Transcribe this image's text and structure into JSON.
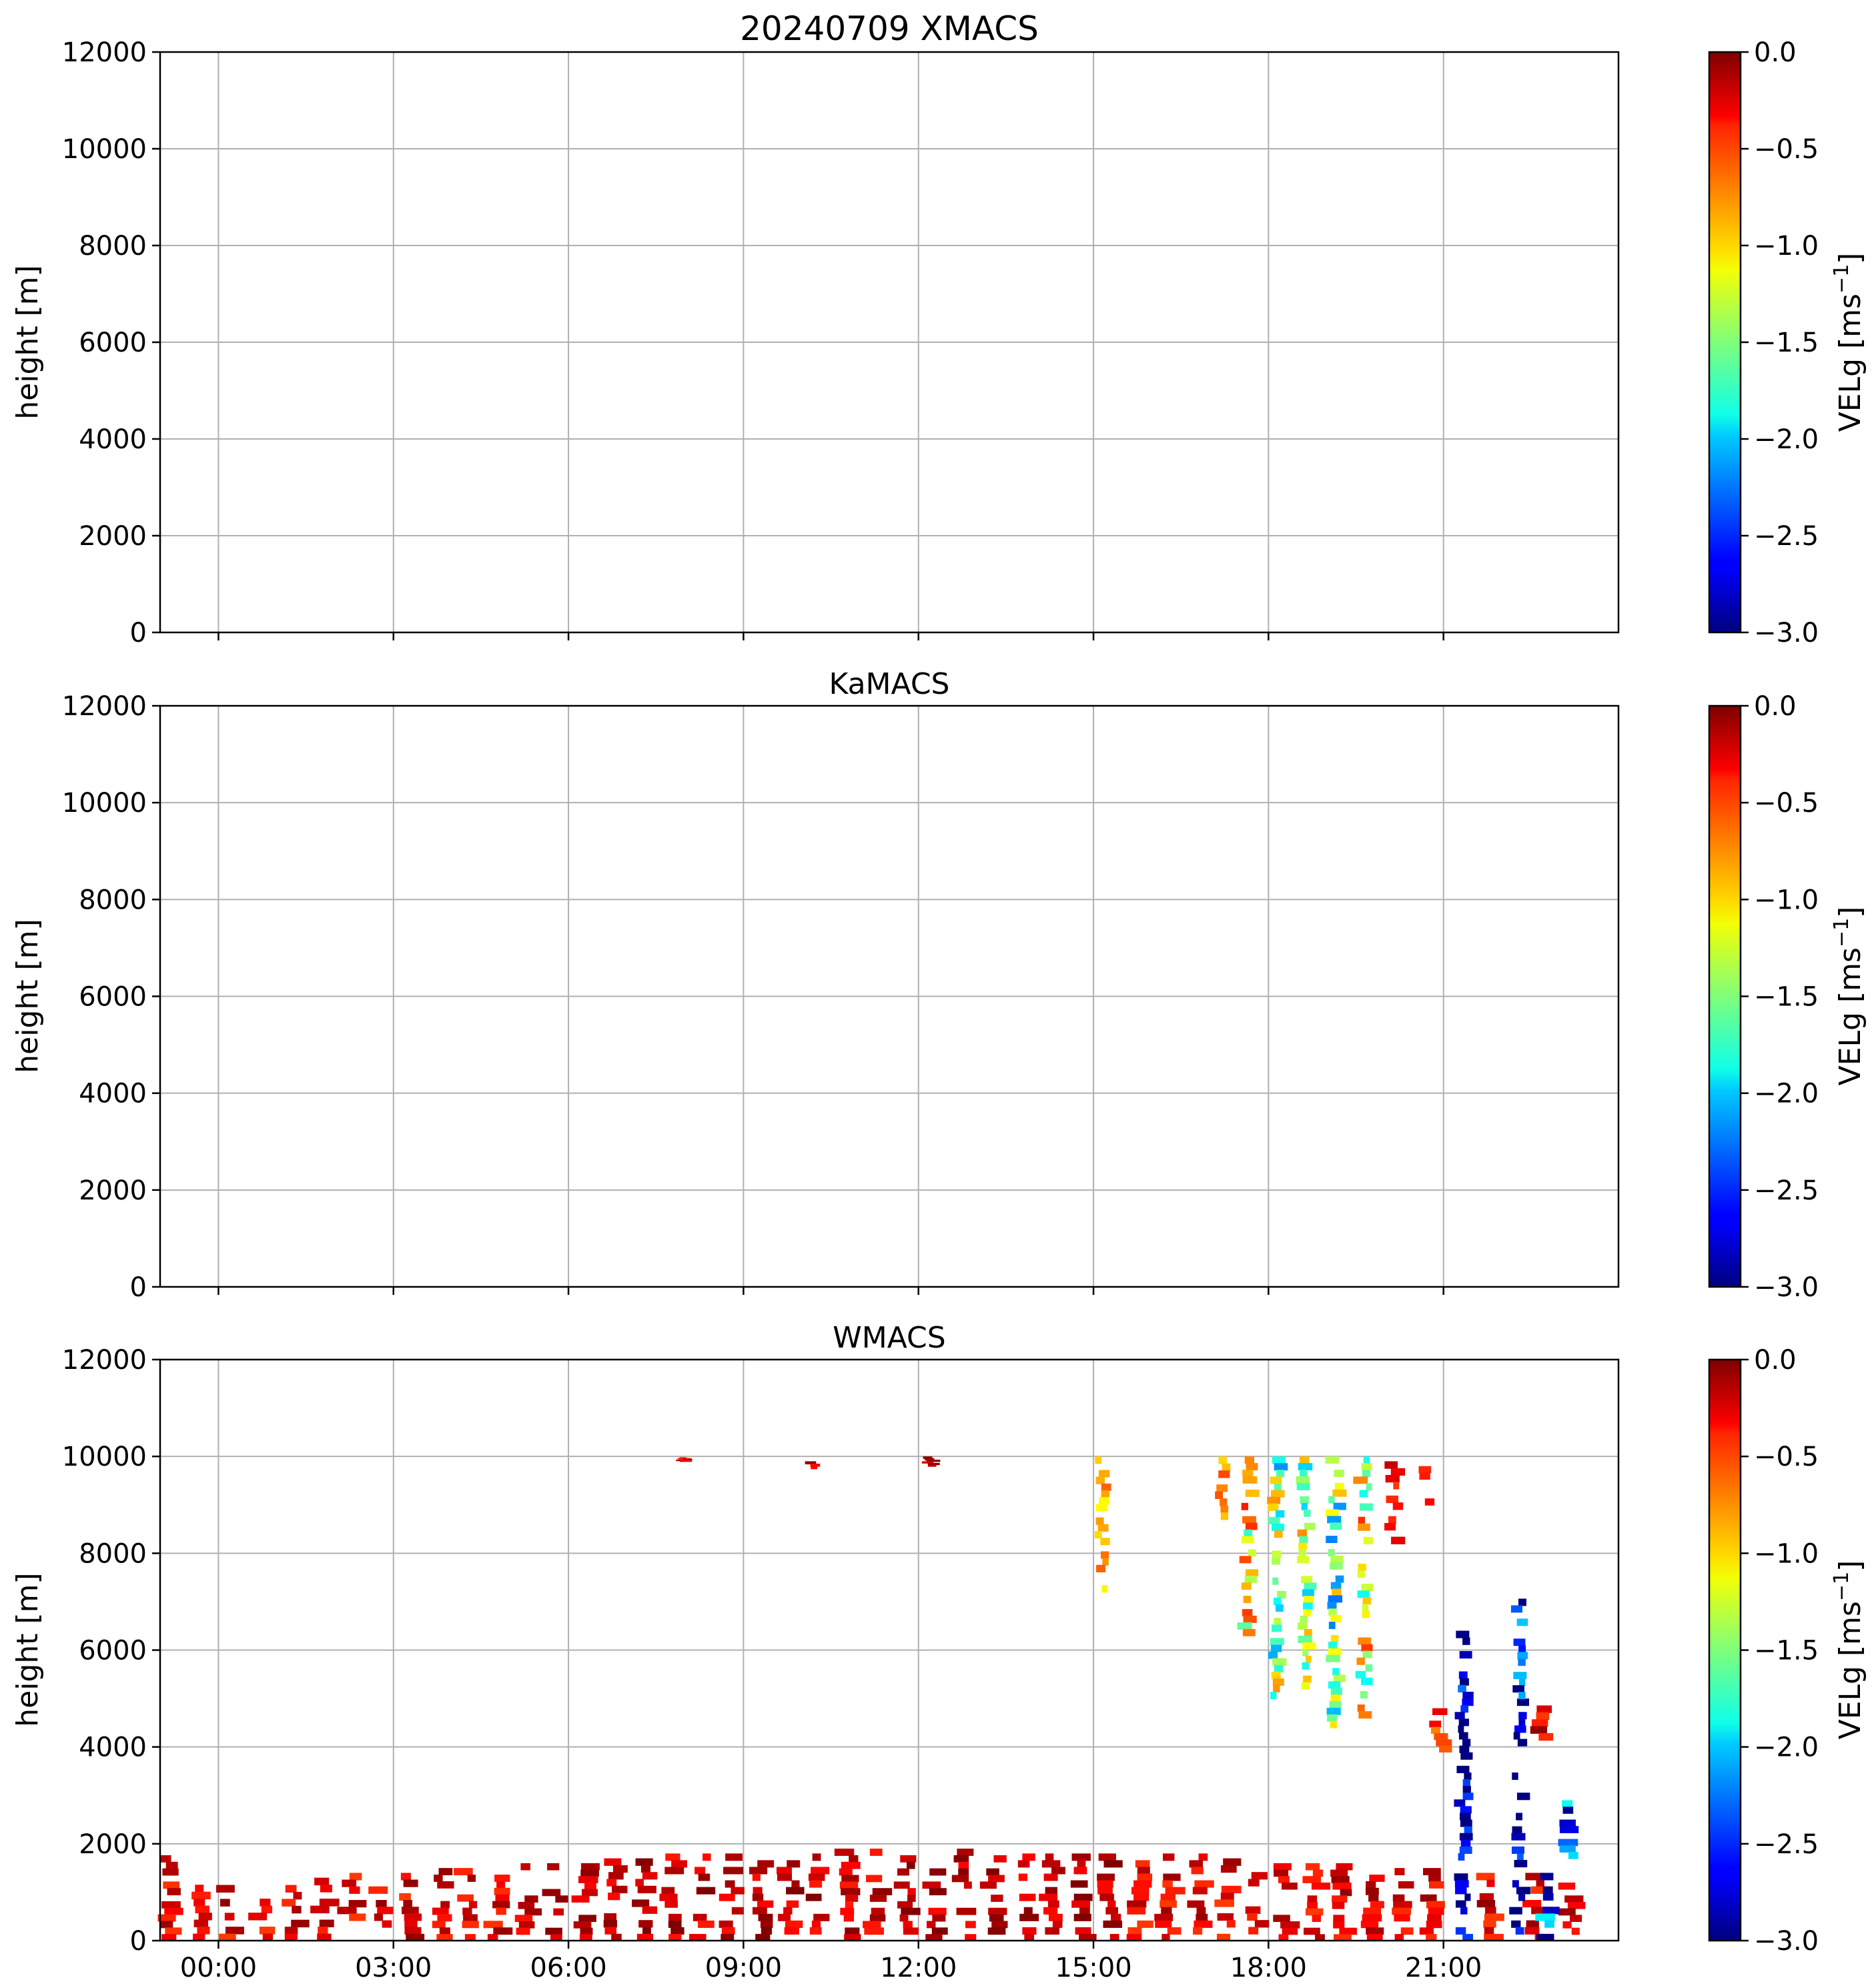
{
  "chart_data": [
    {
      "type": "heatmap",
      "title": "20240709 XMACS",
      "ylabel": "height [m]",
      "ylim": [
        0,
        12000
      ],
      "yticks": [
        "0",
        "2000",
        "4000",
        "6000",
        "8000",
        "10000",
        "12000"
      ],
      "xlim_hours": [
        -1,
        24
      ],
      "xticks": [
        "00:00",
        "03:00",
        "06:00",
        "09:00",
        "12:00",
        "15:00",
        "18:00",
        "21:00"
      ],
      "show_xticklabels": false,
      "grid": true,
      "colorbar": {
        "label": "VELg [ms",
        "label_exponent": "−1",
        "label_tail": "]",
        "range": [
          -3.0,
          0.0
        ],
        "ticks": [
          "0.0",
          "−0.5",
          "−1.0",
          "−1.5",
          "−2.0",
          "−2.5",
          "−3.0"
        ],
        "colormap": "jet"
      },
      "data": []
    },
    {
      "type": "heatmap",
      "title": "KaMACS",
      "ylabel": "height [m]",
      "ylim": [
        0,
        12000
      ],
      "yticks": [
        "0",
        "2000",
        "4000",
        "6000",
        "8000",
        "10000",
        "12000"
      ],
      "xlim_hours": [
        -1,
        24
      ],
      "xticks": [
        "00:00",
        "03:00",
        "06:00",
        "09:00",
        "12:00",
        "15:00",
        "18:00",
        "21:00"
      ],
      "show_xticklabels": false,
      "grid": true,
      "colorbar": {
        "label": "VELg [ms",
        "label_exponent": "−1",
        "label_tail": "]",
        "range": [
          -3.0,
          0.0
        ],
        "ticks": [
          "0.0",
          "−0.5",
          "−1.0",
          "−1.5",
          "−2.0",
          "−2.5",
          "−3.0"
        ],
        "colormap": "jet"
      },
      "data": []
    },
    {
      "type": "heatmap",
      "title": "WMACS",
      "ylabel": "height [m]",
      "ylim": [
        0,
        12000
      ],
      "yticks": [
        "0",
        "2000",
        "4000",
        "6000",
        "8000",
        "10000",
        "12000"
      ],
      "xlim_hours": [
        -1,
        24
      ],
      "xticks": [
        "00:00",
        "03:00",
        "06:00",
        "09:00",
        "12:00",
        "15:00",
        "18:00",
        "21:00"
      ],
      "show_xticklabels": true,
      "grid": true,
      "colorbar": {
        "label": "VELg [ms",
        "label_exponent": "−1",
        "label_tail": "]",
        "range": [
          -3.0,
          0.0
        ],
        "ticks": [
          "0.0",
          "−0.5",
          "−1.0",
          "−1.5",
          "−2.0",
          "−2.5",
          "−3.0"
        ],
        "colormap": "jet"
      },
      "data": [
        {
          "t": -0.85,
          "h0": 0,
          "h1": 1900,
          "v": -0.3
        },
        {
          "t": -0.3,
          "h0": 0,
          "h1": 1300,
          "v": -0.3
        },
        {
          "t": 0.2,
          "h0": 0,
          "h1": 1150,
          "v": -0.3
        },
        {
          "t": 0.75,
          "h0": 0,
          "h1": 1300,
          "v": -0.3
        },
        {
          "t": 1.3,
          "h0": 0,
          "h1": 1150,
          "v": -0.3
        },
        {
          "t": 1.8,
          "h0": 0,
          "h1": 1300,
          "v": -0.3
        },
        {
          "t": 2.3,
          "h0": 0,
          "h1": 1400,
          "v": -0.3
        },
        {
          "t": 2.8,
          "h0": 0,
          "h1": 1400,
          "v": -0.3
        },
        {
          "t": 3.3,
          "h0": 0,
          "h1": 1400,
          "v": -0.3
        },
        {
          "t": 3.8,
          "h0": 0,
          "h1": 1500,
          "v": -0.3
        },
        {
          "t": 4.3,
          "h0": 0,
          "h1": 1500,
          "v": -0.3
        },
        {
          "t": 4.8,
          "h0": 0,
          "h1": 1500,
          "v": -0.3
        },
        {
          "t": 5.3,
          "h0": 0,
          "h1": 1600,
          "v": -0.2
        },
        {
          "t": 5.8,
          "h0": 0,
          "h1": 1600,
          "v": -0.2
        },
        {
          "t": 6.3,
          "h0": 0,
          "h1": 1600,
          "v": -0.2
        },
        {
          "t": 6.8,
          "h0": 0,
          "h1": 1700,
          "v": -0.2
        },
        {
          "t": 7.3,
          "h0": 0,
          "h1": 1700,
          "v": -0.2
        },
        {
          "t": 7.8,
          "h0": 0,
          "h1": 1800,
          "v": -0.2
        },
        {
          "t": 8.3,
          "h0": 0,
          "h1": 1800,
          "v": -0.2
        },
        {
          "t": 8.8,
          "h0": 0,
          "h1": 1800,
          "v": -0.2
        },
        {
          "t": 9.3,
          "h0": 0,
          "h1": 1800,
          "v": -0.2
        },
        {
          "t": 9.8,
          "h0": 0,
          "h1": 1800,
          "v": -0.2
        },
        {
          "t": 10.3,
          "h0": 0,
          "h1": 1800,
          "v": -0.2
        },
        {
          "t": 10.8,
          "h0": 0,
          "h1": 1900,
          "v": -0.2
        },
        {
          "t": 11.3,
          "h0": 0,
          "h1": 1900,
          "v": -0.2
        },
        {
          "t": 11.8,
          "h0": 0,
          "h1": 1900,
          "v": -0.2
        },
        {
          "t": 12.3,
          "h0": 0,
          "h1": 1900,
          "v": -0.2
        },
        {
          "t": 12.8,
          "h0": 0,
          "h1": 1900,
          "v": -0.2
        },
        {
          "t": 13.3,
          "h0": 0,
          "h1": 1900,
          "v": -0.2
        },
        {
          "t": 13.8,
          "h0": 0,
          "h1": 1800,
          "v": -0.2
        },
        {
          "t": 14.3,
          "h0": 0,
          "h1": 1800,
          "v": -0.2
        },
        {
          "t": 14.8,
          "h0": 0,
          "h1": 1800,
          "v": -0.2
        },
        {
          "t": 15.3,
          "h0": 0,
          "h1": 1800,
          "v": -0.2
        },
        {
          "t": 15.8,
          "h0": 0,
          "h1": 1800,
          "v": -0.3
        },
        {
          "t": 16.3,
          "h0": 0,
          "h1": 1800,
          "v": -0.3
        },
        {
          "t": 16.8,
          "h0": 0,
          "h1": 1800,
          "v": -0.3
        },
        {
          "t": 17.3,
          "h0": 0,
          "h1": 1700,
          "v": -0.3
        },
        {
          "t": 17.8,
          "h0": 0,
          "h1": 1700,
          "v": -0.3
        },
        {
          "t": 18.3,
          "h0": 0,
          "h1": 1600,
          "v": -0.3
        },
        {
          "t": 18.8,
          "h0": 0,
          "h1": 1600,
          "v": -0.3
        },
        {
          "t": 19.3,
          "h0": 0,
          "h1": 1600,
          "v": -0.3
        },
        {
          "t": 19.8,
          "h0": 0,
          "h1": 1500,
          "v": -0.3
        },
        {
          "t": 20.3,
          "h0": 0,
          "h1": 1500,
          "v": -0.3
        },
        {
          "t": 20.8,
          "h0": 0,
          "h1": 1500,
          "v": -0.3
        },
        {
          "t": 21.8,
          "h0": 0,
          "h1": 1400,
          "v": -0.3
        },
        {
          "t": 22.6,
          "h0": 0,
          "h1": 1400,
          "v": -0.3
        },
        {
          "t": 23.2,
          "h0": 0,
          "h1": 1200,
          "v": -0.3
        },
        {
          "t": 21.35,
          "h0": 0,
          "h1": 5000,
          "v": -3.0
        },
        {
          "t": 21.35,
          "h0": 5000,
          "h1": 6400,
          "v": -2.8
        },
        {
          "t": 22.3,
          "h0": 0,
          "h1": 5000,
          "v": -3.0
        },
        {
          "t": 22.3,
          "h0": 5000,
          "h1": 7200,
          "v": -2.7
        },
        {
          "t": 22.75,
          "h0": 0,
          "h1": 1400,
          "v": -2.6
        },
        {
          "t": 23.2,
          "h0": 1700,
          "h1": 2900,
          "v": -2.3
        },
        {
          "t": 20.95,
          "h0": 3900,
          "h1": 4800,
          "v": -0.5
        },
        {
          "t": 22.7,
          "h0": 4000,
          "h1": 5000,
          "v": -0.3
        },
        {
          "t": 15.15,
          "h0": 7200,
          "h1": 10000,
          "v": -0.9
        },
        {
          "t": 17.2,
          "h0": 8700,
          "h1": 10000,
          "v": -0.8
        },
        {
          "t": 17.65,
          "h0": 6300,
          "h1": 10000,
          "v": -1.1
        },
        {
          "t": 18.15,
          "h0": 5000,
          "h1": 10000,
          "v": -1.5
        },
        {
          "t": 18.65,
          "h0": 5200,
          "h1": 10000,
          "v": -1.4
        },
        {
          "t": 19.15,
          "h0": 4400,
          "h1": 10000,
          "v": -1.6
        },
        {
          "t": 19.65,
          "h0": 4600,
          "h1": 10000,
          "v": -1.2
        },
        {
          "t": 20.15,
          "h0": 8200,
          "h1": 9900,
          "v": -0.4
        },
        {
          "t": 20.7,
          "h0": 9000,
          "h1": 9800,
          "v": -0.3
        },
        {
          "t": 10.2,
          "h0": 9700,
          "h1": 10000,
          "v": -0.2
        },
        {
          "t": 12.2,
          "h0": 9800,
          "h1": 10000,
          "v": -0.2
        },
        {
          "t": 8.0,
          "h0": 9900,
          "h1": 10000,
          "v": -0.2
        }
      ]
    }
  ]
}
